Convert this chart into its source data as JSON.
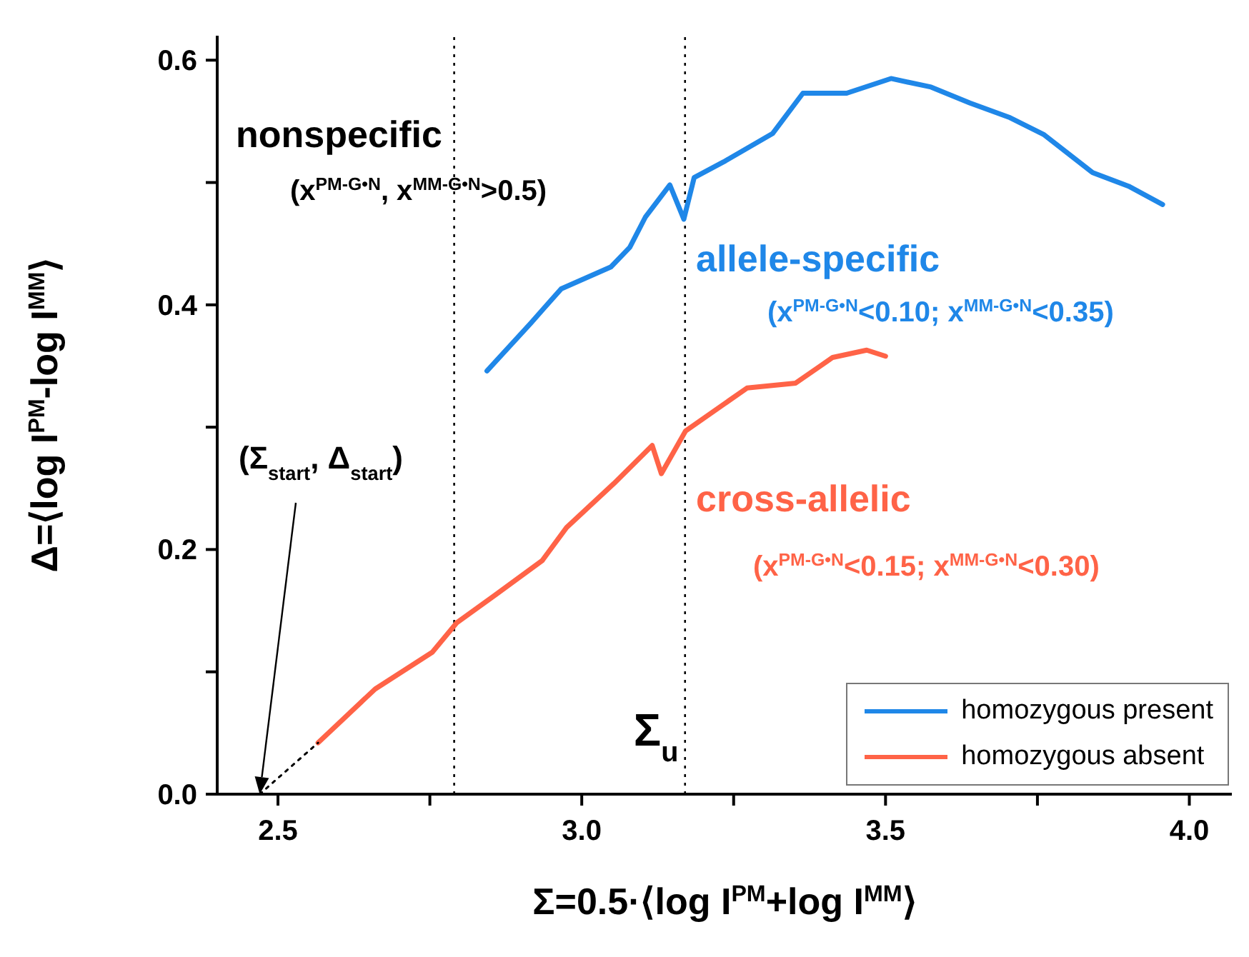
{
  "chart_data": {
    "type": "line",
    "xlabel": "Σ=0.5·⟨log I$^{PM}$+log I$^{MM}$⟩",
    "ylabel": "Δ=⟨log I$^{PM}$-log I$^{MM}$⟩",
    "xlim": [
      2.4,
      4.07
    ],
    "ylim": [
      0,
      0.62
    ],
    "xticks": [
      2.5,
      {
        "value": 2.75,
        "label": null
      },
      {
        "value": 3,
        "label": "3.0"
      },
      {
        "value": 3.25,
        "label": null
      },
      3.5,
      {
        "value": 3.75,
        "label": null
      },
      {
        "value": 4,
        "label": "4.0"
      }
    ],
    "yticks": [
      {
        "value": 0,
        "label": "0.0"
      },
      {
        "value": 0.1,
        "label": null
      },
      0.2,
      {
        "value": 0.3,
        "label": null
      },
      0.4,
      {
        "value": 0.5,
        "label": null
      },
      0.6
    ],
    "series": [
      {
        "name": "homozygous present",
        "color": "#1f87e8",
        "x": [
          2.844,
          2.916,
          2.966,
          3.048,
          3.079,
          3.105,
          3.145,
          3.168,
          3.185,
          3.234,
          3.314,
          3.364,
          3.436,
          3.509,
          3.575,
          3.639,
          3.705,
          3.761,
          3.841,
          3.9,
          3.956
        ],
        "values": [
          0.346,
          0.385,
          0.413,
          0.431,
          0.447,
          0.472,
          0.498,
          0.47,
          0.504,
          0.517,
          0.54,
          0.573,
          0.573,
          0.585,
          0.578,
          0.565,
          0.553,
          0.539,
          0.508,
          0.497,
          0.482
        ]
      },
      {
        "name": "homozygous absent",
        "color": "#ff6347",
        "x": [
          2.566,
          2.66,
          2.754,
          2.794,
          2.858,
          2.935,
          2.975,
          3.053,
          3.116,
          3.131,
          3.171,
          3.272,
          3.352,
          3.413,
          3.469,
          3.5
        ],
        "values": [
          0.042,
          0.086,
          0.116,
          0.14,
          0.163,
          0.191,
          0.218,
          0.254,
          0.285,
          0.262,
          0.297,
          0.332,
          0.336,
          0.357,
          0.363,
          0.358
        ]
      },
      {
        "color": "#000000",
        "line_style": "dotted",
        "x": [
          2.47,
          2.566
        ],
        "values": [
          0,
          0.042
        ]
      }
    ],
    "ref_lines": [
      {
        "axis": "x",
        "value": 2.79,
        "label": null,
        "color": "#000000",
        "line_style": "dotted"
      },
      {
        "axis": "x",
        "value": 3.17,
        "label": "Σ$_{u}$",
        "color": "#000000",
        "line_style": "dotted"
      }
    ],
    "annotations": [
      "nonspecific",
      "(x$^{PM-G•N}$, x$^{MM-G•N}$>0.5)",
      "allele-specific",
      "(x$^{PM-G•N}$<0.10; x$^{MM-G•N}$<0.35)",
      "cross-allelic",
      "(x$^{PM-G•N}$<0.15; x$^{MM-G•N}$<0.30)",
      "(Σ$_{start}$, Δ$_{start}$)"
    ],
    "legend": "bottom right",
    "grid": false,
    "marker": "none",
    "line_style": "solid"
  }
}
